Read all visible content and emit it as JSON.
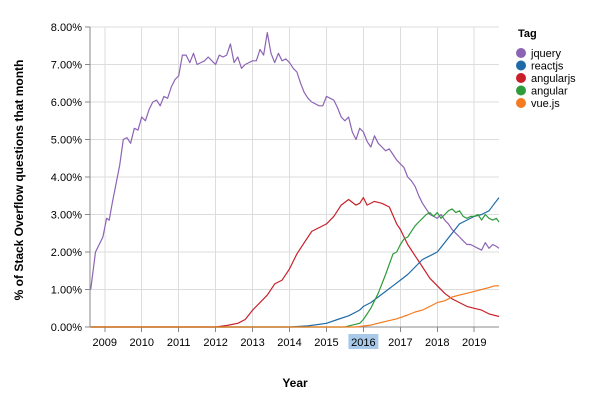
{
  "chart_data": {
    "type": "line",
    "xlabel": "Year",
    "ylabel": "% of Stack Overflow questions that month",
    "xlim": [
      2008.6,
      2019.67
    ],
    "ylim": [
      0,
      8
    ],
    "x_ticks": [
      2009,
      2010,
      2011,
      2012,
      2013,
      2014,
      2015,
      2016,
      2017,
      2018,
      2019
    ],
    "y_ticks": [
      0,
      1,
      2,
      3,
      4,
      5,
      6,
      7,
      8
    ],
    "y_tick_labels": [
      "0.00%",
      "1.00%",
      "2.00%",
      "3.00%",
      "4.00%",
      "5.00%",
      "6.00%",
      "7.00%",
      "8.00%"
    ],
    "highlighted_tick": 2016,
    "highlight_color": "#a9c9ea",
    "grid": true,
    "legend_title": "Tag",
    "legend_position": "right",
    "series": [
      {
        "name": "jquery",
        "color": "#8c64b4",
        "x": [
          2008.62,
          2008.75,
          2008.85,
          2008.95,
          2009.05,
          2009.12,
          2009.2,
          2009.3,
          2009.4,
          2009.5,
          2009.6,
          2009.7,
          2009.8,
          2009.9,
          2010.0,
          2010.1,
          2010.2,
          2010.3,
          2010.4,
          2010.5,
          2010.6,
          2010.7,
          2010.8,
          2010.9,
          2011.0,
          2011.1,
          2011.2,
          2011.3,
          2011.4,
          2011.5,
          2011.6,
          2011.7,
          2011.8,
          2011.9,
          2012.0,
          2012.1,
          2012.2,
          2012.3,
          2012.4,
          2012.5,
          2012.6,
          2012.7,
          2012.8,
          2012.9,
          2013.0,
          2013.1,
          2013.2,
          2013.3,
          2013.4,
          2013.5,
          2013.6,
          2013.7,
          2013.8,
          2013.9,
          2014.0,
          2014.1,
          2014.2,
          2014.3,
          2014.4,
          2014.5,
          2014.6,
          2014.7,
          2014.8,
          2014.9,
          2015.0,
          2015.1,
          2015.2,
          2015.3,
          2015.4,
          2015.5,
          2015.6,
          2015.7,
          2015.8,
          2015.9,
          2016.0,
          2016.1,
          2016.2,
          2016.3,
          2016.4,
          2016.5,
          2016.6,
          2016.7,
          2016.8,
          2016.9,
          2017.0,
          2017.1,
          2017.2,
          2017.3,
          2017.4,
          2017.5,
          2017.6,
          2017.7,
          2017.8,
          2017.9,
          2018.0,
          2018.1,
          2018.2,
          2018.3,
          2018.4,
          2018.5,
          2018.6,
          2018.7,
          2018.8,
          2018.9,
          2019.0,
          2019.1,
          2019.2,
          2019.3,
          2019.4,
          2019.5,
          2019.6,
          2019.67
        ],
        "values": [
          1.0,
          2.0,
          2.2,
          2.4,
          2.9,
          2.85,
          3.3,
          3.8,
          4.3,
          5.0,
          5.05,
          4.9,
          5.3,
          5.25,
          5.6,
          5.5,
          5.8,
          6.0,
          6.05,
          5.9,
          6.15,
          6.1,
          6.4,
          6.6,
          6.7,
          7.25,
          7.25,
          7.05,
          7.3,
          7.0,
          7.05,
          7.1,
          7.2,
          7.1,
          7.0,
          7.25,
          7.2,
          7.25,
          7.55,
          7.05,
          7.2,
          6.9,
          7.0,
          7.05,
          7.1,
          7.1,
          7.4,
          7.25,
          7.85,
          7.3,
          7.05,
          7.3,
          7.1,
          7.15,
          7.05,
          6.9,
          6.8,
          6.5,
          6.25,
          6.1,
          6.0,
          5.95,
          5.9,
          5.9,
          6.15,
          6.1,
          6.05,
          5.85,
          5.6,
          5.5,
          5.6,
          5.2,
          5.0,
          5.3,
          5.2,
          4.95,
          4.8,
          5.1,
          4.9,
          4.8,
          4.7,
          4.75,
          4.6,
          4.45,
          4.35,
          4.25,
          4.0,
          3.9,
          3.75,
          3.5,
          3.3,
          3.15,
          3.0,
          2.95,
          2.9,
          3.0,
          2.85,
          2.75,
          2.6,
          2.5,
          2.4,
          2.3,
          2.2,
          2.2,
          2.15,
          2.1,
          2.05,
          2.25,
          2.1,
          2.2,
          2.15,
          2.1
        ]
      },
      {
        "name": "reactjs",
        "color": "#1f6ba8",
        "x": [
          2008.62,
          2014.0,
          2014.5,
          2015.0,
          2015.3,
          2015.6,
          2015.9,
          2016.0,
          2016.2,
          2016.4,
          2016.6,
          2016.8,
          2017.0,
          2017.2,
          2017.4,
          2017.6,
          2017.8,
          2018.0,
          2018.2,
          2018.4,
          2018.6,
          2018.8,
          2019.0,
          2019.2,
          2019.4,
          2019.55,
          2019.67
        ],
        "values": [
          0.0,
          0.0,
          0.03,
          0.1,
          0.2,
          0.3,
          0.45,
          0.55,
          0.65,
          0.8,
          0.95,
          1.1,
          1.25,
          1.4,
          1.6,
          1.8,
          1.9,
          2.0,
          2.25,
          2.5,
          2.75,
          2.85,
          2.95,
          3.0,
          3.1,
          3.3,
          3.45
        ]
      },
      {
        "name": "angularjs",
        "color": "#c8202a",
        "x": [
          2008.62,
          2012.0,
          2012.3,
          2012.6,
          2012.8,
          2013.0,
          2013.2,
          2013.4,
          2013.6,
          2013.8,
          2014.0,
          2014.2,
          2014.4,
          2014.6,
          2014.8,
          2015.0,
          2015.2,
          2015.4,
          2015.6,
          2015.8,
          2015.9,
          2016.0,
          2016.1,
          2016.3,
          2016.5,
          2016.7,
          2016.9,
          2017.0,
          2017.2,
          2017.4,
          2017.6,
          2017.8,
          2018.0,
          2018.2,
          2018.4,
          2018.6,
          2018.8,
          2019.0,
          2019.2,
          2019.4,
          2019.67
        ],
        "values": [
          0.0,
          0.0,
          0.04,
          0.1,
          0.2,
          0.45,
          0.65,
          0.85,
          1.15,
          1.25,
          1.55,
          1.95,
          2.25,
          2.55,
          2.65,
          2.75,
          2.95,
          3.25,
          3.4,
          3.25,
          3.3,
          3.45,
          3.25,
          3.35,
          3.3,
          3.2,
          2.75,
          2.6,
          2.2,
          1.9,
          1.6,
          1.3,
          1.1,
          0.9,
          0.75,
          0.65,
          0.55,
          0.5,
          0.45,
          0.35,
          0.28
        ]
      },
      {
        "name": "angular",
        "color": "#2e9c3a",
        "x": [
          2008.62,
          2015.5,
          2015.7,
          2015.9,
          2016.0,
          2016.2,
          2016.4,
          2016.6,
          2016.8,
          2016.9,
          2017.0,
          2017.1,
          2017.2,
          2017.4,
          2017.5,
          2017.6,
          2017.7,
          2017.8,
          2017.9,
          2018.0,
          2018.1,
          2018.2,
          2018.3,
          2018.4,
          2018.5,
          2018.6,
          2018.7,
          2018.8,
          2018.9,
          2019.0,
          2019.1,
          2019.2,
          2019.3,
          2019.4,
          2019.5,
          2019.6,
          2019.67
        ],
        "values": [
          0.0,
          0.0,
          0.05,
          0.1,
          0.2,
          0.5,
          0.9,
          1.4,
          1.95,
          2.0,
          2.2,
          2.35,
          2.4,
          2.7,
          2.8,
          2.9,
          3.0,
          3.05,
          2.95,
          3.05,
          2.9,
          3.0,
          3.1,
          3.15,
          3.05,
          3.1,
          2.95,
          2.9,
          2.95,
          2.95,
          3.0,
          2.85,
          3.0,
          2.9,
          2.85,
          2.9,
          2.8
        ]
      },
      {
        "name": "vue.js",
        "color": "#f47b20",
        "x": [
          2008.62,
          2015.8,
          2016.2,
          2016.6,
          2016.9,
          2017.0,
          2017.2,
          2017.4,
          2017.6,
          2017.8,
          2018.0,
          2018.2,
          2018.4,
          2018.6,
          2018.8,
          2019.0,
          2019.2,
          2019.4,
          2019.55,
          2019.67
        ],
        "values": [
          0.0,
          0.0,
          0.05,
          0.15,
          0.22,
          0.25,
          0.32,
          0.4,
          0.45,
          0.55,
          0.65,
          0.7,
          0.8,
          0.85,
          0.9,
          0.95,
          1.0,
          1.05,
          1.1,
          1.1
        ]
      }
    ]
  }
}
